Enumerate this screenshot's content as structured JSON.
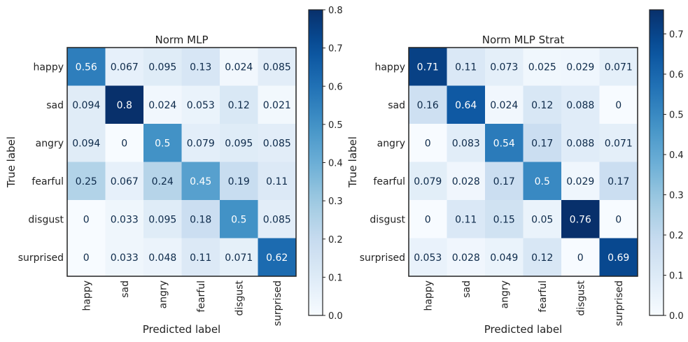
{
  "chart_data": [
    {
      "type": "heatmap",
      "title": "Norm MLP",
      "xlabel": "Predicted label",
      "ylabel": "True label",
      "categories": [
        "happy",
        "sad",
        "angry",
        "fearful",
        "disgust",
        "surprised"
      ],
      "rows": [
        "happy",
        "sad",
        "angry",
        "fearful",
        "disgust",
        "surprised"
      ],
      "values": [
        [
          "0.56",
          "0.067",
          "0.095",
          "0.13",
          "0.024",
          "0.085"
        ],
        [
          "0.094",
          "0.8",
          "0.024",
          "0.053",
          "0.12",
          "0.021"
        ],
        [
          "0.094",
          "0",
          "0.5",
          "0.079",
          "0.095",
          "0.085"
        ],
        [
          "0.25",
          "0.067",
          "0.24",
          "0.45",
          "0.19",
          "0.11"
        ],
        [
          "0",
          "0.033",
          "0.095",
          "0.18",
          "0.5",
          "0.085"
        ],
        [
          "0",
          "0.033",
          "0.048",
          "0.11",
          "0.071",
          "0.62"
        ]
      ],
      "colorbar": {
        "vmin": 0,
        "vmax": 0.8,
        "ticks": [
          "0.0",
          "0.1",
          "0.2",
          "0.3",
          "0.4",
          "0.5",
          "0.6",
          "0.7",
          "0.8"
        ],
        "colormap": "Blues"
      }
    },
    {
      "type": "heatmap",
      "title": "Norm MLP Strat",
      "xlabel": "Predicted label",
      "ylabel": "True label",
      "categories": [
        "happy",
        "sad",
        "angry",
        "fearful",
        "disgust",
        "surprised"
      ],
      "rows": [
        "happy",
        "sad",
        "angry",
        "fearful",
        "disgust",
        "surprised"
      ],
      "values": [
        [
          "0.71",
          "0.11",
          "0.073",
          "0.025",
          "0.029",
          "0.071"
        ],
        [
          "0.16",
          "0.64",
          "0.024",
          "0.12",
          "0.088",
          "0"
        ],
        [
          "0",
          "0.083",
          "0.54",
          "0.17",
          "0.088",
          "0.071"
        ],
        [
          "0.079",
          "0.028",
          "0.17",
          "0.5",
          "0.029",
          "0.17"
        ],
        [
          "0",
          "0.11",
          "0.15",
          "0.05",
          "0.76",
          "0"
        ],
        [
          "0.053",
          "0.028",
          "0.049",
          "0.12",
          "0",
          "0.69"
        ]
      ],
      "colorbar": {
        "vmin": 0,
        "vmax": 0.76,
        "ticks": [
          "0.0",
          "0.1",
          "0.2",
          "0.3",
          "0.4",
          "0.5",
          "0.6",
          "0.7"
        ],
        "colormap": "Blues"
      }
    }
  ]
}
